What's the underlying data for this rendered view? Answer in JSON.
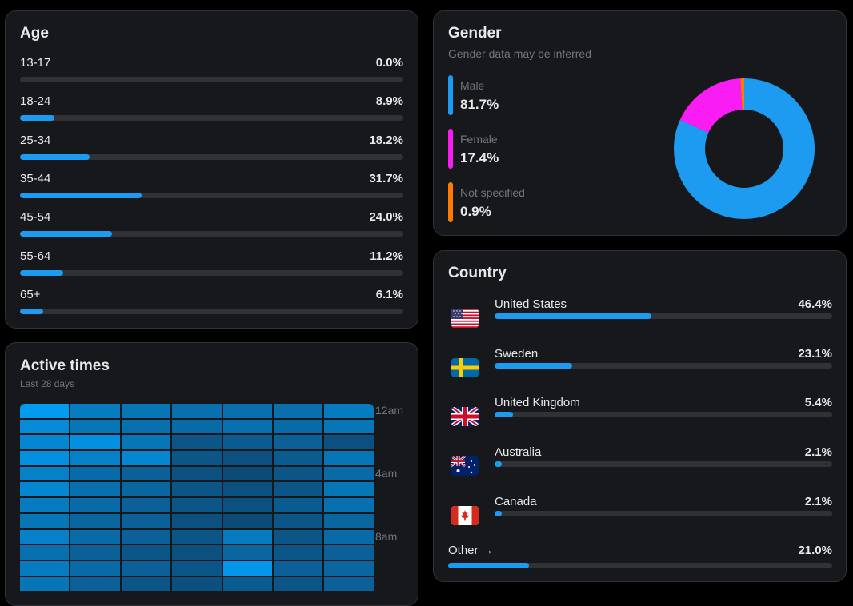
{
  "age": {
    "title": "Age",
    "rows": [
      {
        "label": "13-17",
        "pct_text": "0.0%",
        "value": 0.0
      },
      {
        "label": "18-24",
        "pct_text": "8.9%",
        "value": 8.9
      },
      {
        "label": "25-34",
        "pct_text": "18.2%",
        "value": 18.2
      },
      {
        "label": "35-44",
        "pct_text": "31.7%",
        "value": 31.7
      },
      {
        "label": "45-54",
        "pct_text": "24.0%",
        "value": 24.0
      },
      {
        "label": "55-64",
        "pct_text": "11.2%",
        "value": 11.2
      },
      {
        "label": "65+",
        "pct_text": "6.1%",
        "value": 6.1
      }
    ]
  },
  "active_times": {
    "title": "Active times",
    "subtitle": "Last 28 days",
    "hour_labels": [
      "12am",
      "4am",
      "8am"
    ],
    "intensity_rows": [
      [
        1.0,
        0.7,
        0.65,
        0.6,
        0.6,
        0.6,
        0.7
      ],
      [
        0.85,
        0.65,
        0.6,
        0.55,
        0.6,
        0.55,
        0.65
      ],
      [
        0.8,
        0.9,
        0.65,
        0.35,
        0.4,
        0.45,
        0.3
      ],
      [
        0.9,
        0.75,
        0.8,
        0.35,
        0.3,
        0.4,
        0.65
      ],
      [
        0.75,
        0.55,
        0.45,
        0.3,
        0.25,
        0.35,
        0.55
      ],
      [
        0.8,
        0.6,
        0.5,
        0.35,
        0.3,
        0.35,
        0.65
      ],
      [
        0.7,
        0.55,
        0.45,
        0.35,
        0.3,
        0.4,
        0.6
      ],
      [
        0.65,
        0.5,
        0.45,
        0.3,
        0.25,
        0.35,
        0.5
      ],
      [
        0.75,
        0.55,
        0.45,
        0.35,
        0.7,
        0.35,
        0.55
      ],
      [
        0.6,
        0.45,
        0.35,
        0.3,
        0.5,
        0.35,
        0.45
      ],
      [
        0.7,
        0.55,
        0.45,
        0.35,
        0.95,
        0.45,
        0.5
      ],
      [
        0.65,
        0.45,
        0.35,
        0.3,
        0.4,
        0.35,
        0.45
      ]
    ]
  },
  "gender": {
    "title": "Gender",
    "subtitle": "Gender data may be inferred",
    "items": [
      {
        "label": "Male",
        "pct_text": "81.7%",
        "value": 81.7,
        "color": "#1d9bf0"
      },
      {
        "label": "Female",
        "pct_text": "17.4%",
        "value": 17.4,
        "color": "#f91cf3"
      },
      {
        "label": "Not specified",
        "pct_text": "0.9%",
        "value": 0.9,
        "color": "#ff7a00"
      }
    ]
  },
  "country": {
    "title": "Country",
    "rows": [
      {
        "label": "United States",
        "pct_text": "46.4%",
        "value": 46.4,
        "flag": "us-flag-icon"
      },
      {
        "label": "Sweden",
        "pct_text": "23.1%",
        "value": 23.1,
        "flag": "sweden-flag-icon"
      },
      {
        "label": "United Kingdom",
        "pct_text": "5.4%",
        "value": 5.4,
        "flag": "uk-flag-icon"
      },
      {
        "label": "Australia",
        "pct_text": "2.1%",
        "value": 2.1,
        "flag": "australia-flag-icon"
      },
      {
        "label": "Canada",
        "pct_text": "2.1%",
        "value": 2.1,
        "flag": "canada-flag-icon"
      }
    ],
    "other": {
      "label": "Other →",
      "pct_text": "21.0%",
      "value": 21.0
    }
  },
  "colors": {
    "accent": "#1d9bf0",
    "card_bg": "#16181c",
    "track": "#2f3336",
    "muted_text": "#71767b"
  }
}
